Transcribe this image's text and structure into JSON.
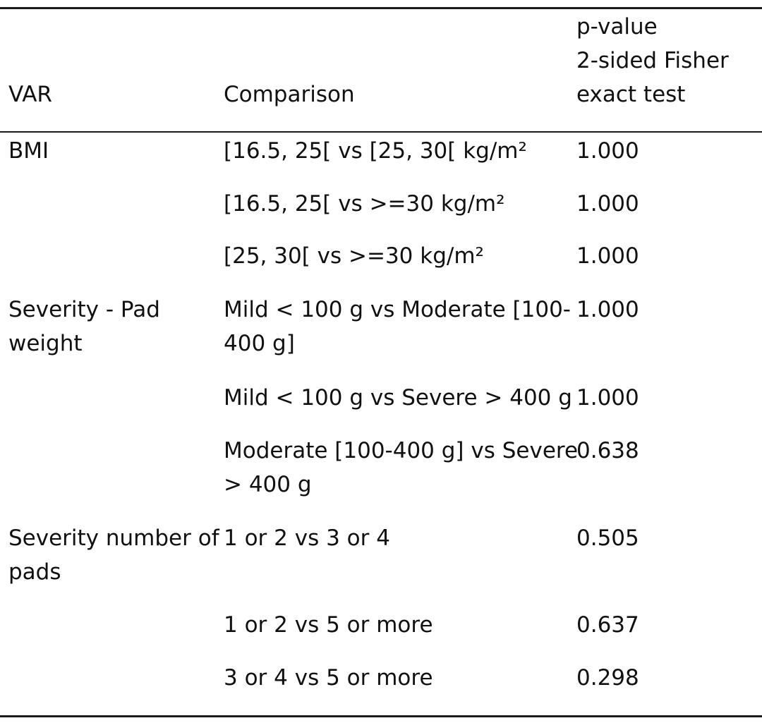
{
  "table": {
    "headers": {
      "var": "VAR",
      "comparison": "Comparison",
      "pvalue_lines": [
        "p-value",
        "2-sided Fisher",
        "exact test"
      ]
    },
    "rows": [
      {
        "var": [
          "BMI"
        ],
        "comparison": [
          "[16.5, 25[ vs [25, 30[ kg/m²"
        ],
        "pvalue": "1.000"
      },
      {
        "var": [],
        "comparison": [
          "[16.5, 25[ vs >=30 kg/m²"
        ],
        "pvalue": "1.000"
      },
      {
        "var": [],
        "comparison": [
          "[25, 30[ vs >=30 kg/m²"
        ],
        "pvalue": "1.000"
      },
      {
        "var": [
          "Severity - Pad",
          "weight"
        ],
        "comparison": [
          "Mild < 100 g vs Moderate [100-",
          "400 g]"
        ],
        "pvalue": "1.000"
      },
      {
        "var": [],
        "comparison": [
          "Mild < 100 g vs Severe > 400 g"
        ],
        "pvalue": "1.000"
      },
      {
        "var": [],
        "comparison": [
          "Moderate [100-400 g] vs Severe",
          "> 400 g"
        ],
        "pvalue": "0.638"
      },
      {
        "var": [
          "Severity number of",
          "pads"
        ],
        "comparison": [
          "1 or 2 vs 3 or 4"
        ],
        "pvalue": "0.505"
      },
      {
        "var": [],
        "comparison": [
          "1 or 2 vs 5 or more"
        ],
        "pvalue": "0.637"
      },
      {
        "var": [],
        "comparison": [
          "3 or 4 vs 5 or more"
        ],
        "pvalue": "0.298"
      }
    ]
  }
}
